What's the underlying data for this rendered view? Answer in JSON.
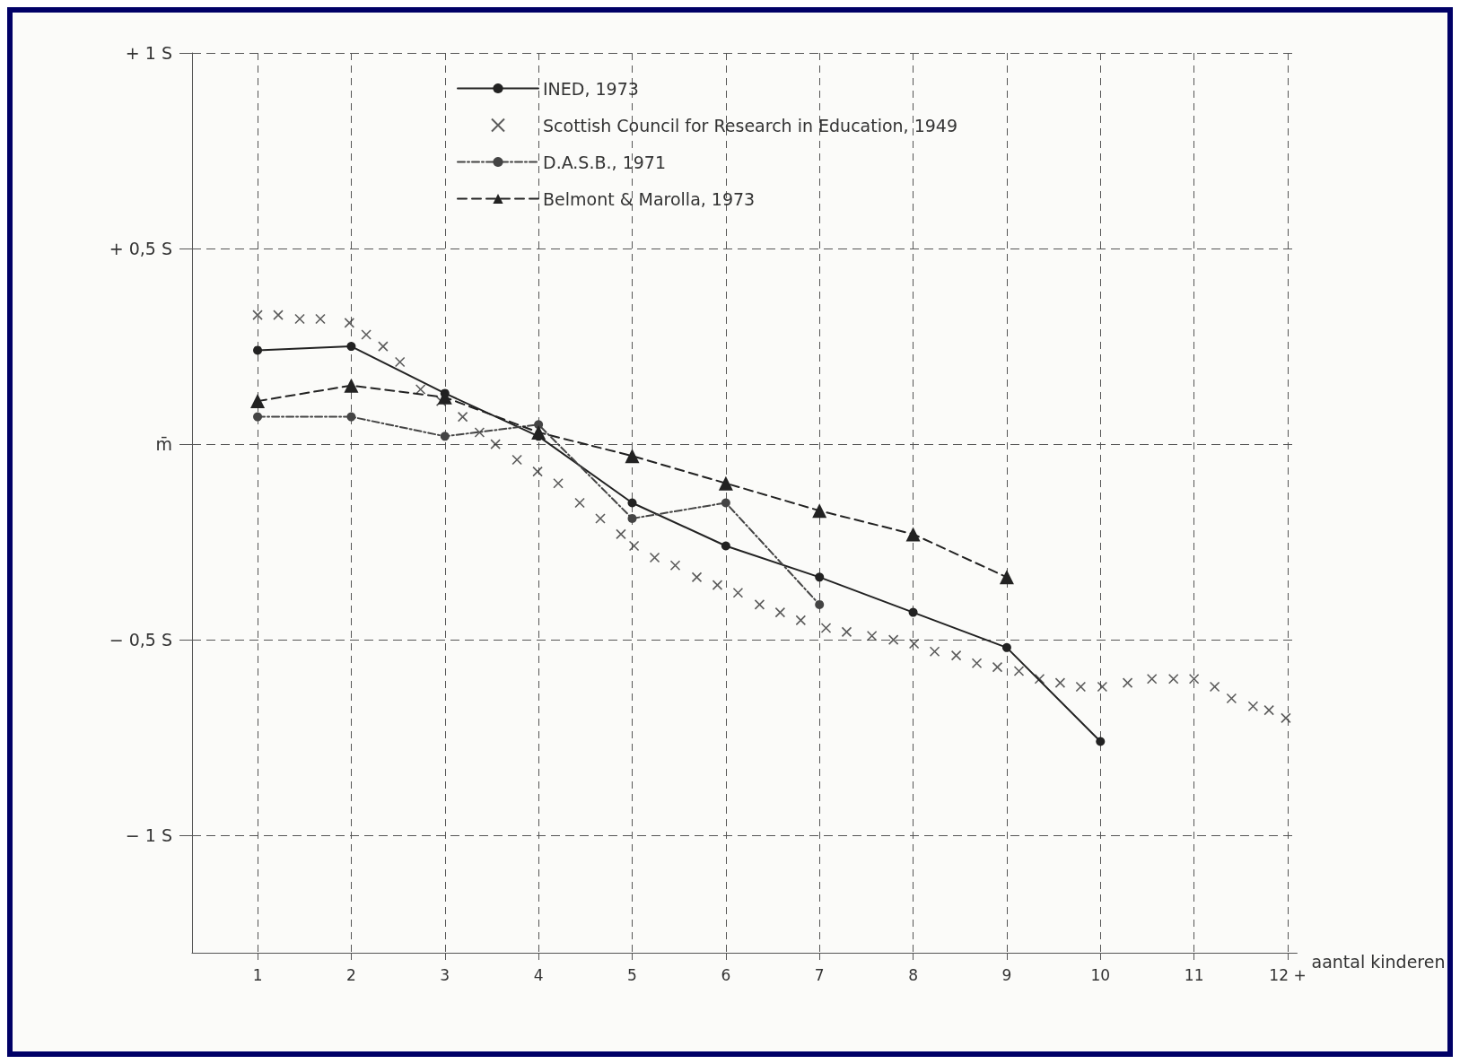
{
  "chart_data": {
    "type": "line",
    "xlabel": "aantal kinderen",
    "xlim": [
      0.3,
      12.1
    ],
    "xticks": [
      1,
      2,
      3,
      4,
      5,
      6,
      7,
      8,
      9,
      10,
      11,
      {
        "value": 12,
        "label": "12 +"
      }
    ],
    "ylim": [
      -1.3,
      1.0
    ],
    "yticks": [
      {
        "value": 1,
        "label": "+ 1 S"
      },
      {
        "value": 0.5,
        "label": "+ 0,5 S"
      },
      {
        "value": 0,
        "label": "m̄"
      },
      {
        "value": -0.5,
        "label": "− 0,5 S"
      },
      {
        "value": -1,
        "label": "− 1 S"
      }
    ],
    "grid": true,
    "legend": "top right",
    "series": [
      {
        "name": "INED, 1973",
        "type": "line",
        "color": "#222222",
        "marker": "circle",
        "line_style": "solid",
        "x": [
          1,
          2,
          3,
          4,
          5,
          6,
          7,
          8,
          9,
          10
        ],
        "values": [
          0.24,
          0.25,
          0.13,
          0.02,
          -0.15,
          -0.26,
          -0.34,
          -0.43,
          -0.52,
          -0.76
        ]
      },
      {
        "name": "Scottish Council for Research in Education, 1949",
        "type": "scatter",
        "color": "#333333",
        "marker": "cross",
        "x": [
          1.0,
          1.22,
          1.45,
          1.67,
          1.98,
          2.16,
          2.34,
          2.52,
          2.74,
          2.96,
          3.19,
          3.37,
          3.54,
          3.77,
          3.99,
          4.21,
          4.44,
          4.66,
          4.88,
          5.02,
          5.24,
          5.46,
          5.69,
          5.91,
          6.13,
          6.36,
          6.58,
          6.8,
          7.07,
          7.29,
          7.56,
          7.79,
          8.01,
          8.23,
          8.46,
          8.68,
          8.9,
          9.13,
          9.35,
          9.57,
          9.79,
          10.02,
          10.29,
          10.55,
          10.78,
          11.0,
          11.22,
          11.4,
          11.63,
          11.8,
          11.98
        ],
        "values": [
          0.33,
          0.33,
          0.32,
          0.32,
          0.31,
          0.28,
          0.25,
          0.21,
          0.14,
          0.11,
          0.07,
          0.03,
          0.0,
          -0.04,
          -0.07,
          -0.1,
          -0.15,
          -0.19,
          -0.23,
          -0.26,
          -0.29,
          -0.31,
          -0.34,
          -0.36,
          -0.38,
          -0.41,
          -0.43,
          -0.45,
          -0.47,
          -0.48,
          -0.49,
          -0.5,
          -0.51,
          -0.53,
          -0.54,
          -0.56,
          -0.57,
          -0.58,
          -0.6,
          -0.61,
          -0.62,
          -0.62,
          -0.61,
          -0.6,
          -0.6,
          -0.6,
          -0.62,
          -0.65,
          -0.67,
          -0.68,
          -0.7
        ]
      },
      {
        "name": "D.A.S.B., 1971",
        "type": "line",
        "color": "#444444",
        "marker": "circle",
        "line_style": "dotted",
        "x": [
          1,
          2,
          3,
          4,
          5,
          6,
          7
        ],
        "values": [
          0.07,
          0.07,
          0.02,
          0.05,
          -0.19,
          -0.15,
          -0.41
        ]
      },
      {
        "name": "Belmont & Marolla, 1973",
        "type": "line",
        "color": "#222222",
        "marker": "triangle",
        "line_style": "dashed",
        "x": [
          1,
          2,
          3,
          4,
          5,
          6,
          7,
          8,
          9
        ],
        "values": [
          0.11,
          0.15,
          0.12,
          0.03,
          -0.03,
          -0.1,
          -0.17,
          -0.23,
          -0.34
        ]
      }
    ]
  }
}
